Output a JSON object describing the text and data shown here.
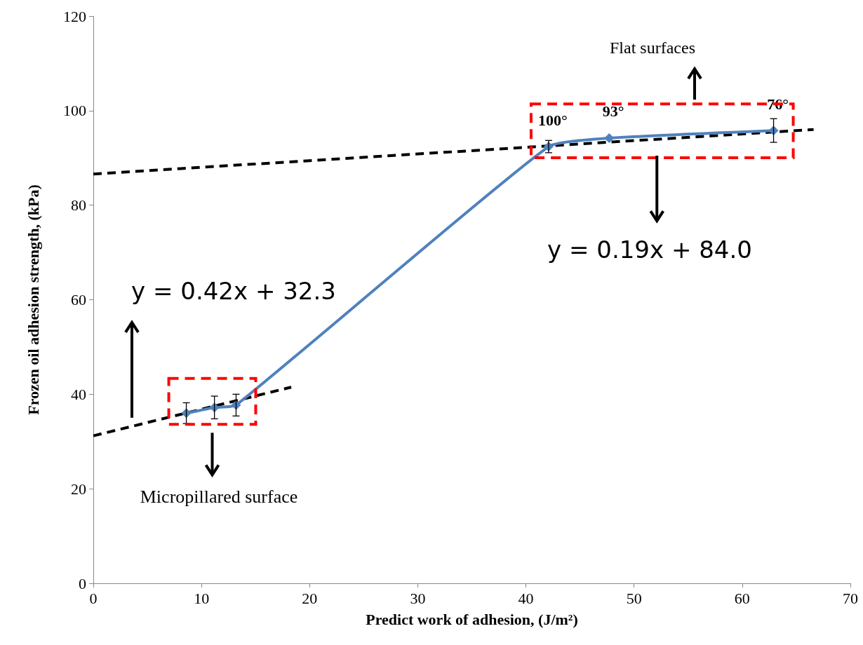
{
  "chart_data": {
    "type": "line",
    "xlabel": "Predict work of adhesion, (J/m²)",
    "ylabel": "Frozen oil adhesion strength, (kPa)",
    "xlim": [
      0,
      70
    ],
    "xticks": [
      0,
      10,
      20,
      30,
      40,
      50,
      60,
      70
    ],
    "ylim": [
      0,
      120
    ],
    "yticks": [
      0,
      20,
      40,
      60,
      80,
      100,
      120
    ],
    "grid": false,
    "series": [
      {
        "color": "#4f81bd",
        "marker": "diamond",
        "line_style": "solid",
        "x": [
          8.6,
          11.2,
          13.2,
          42.1,
          47.7,
          62.9
        ],
        "values": [
          36.0,
          37.2,
          37.7,
          92.4,
          94.2,
          95.8
        ],
        "errors": [
          2.2,
          2.4,
          2.3,
          1.3,
          null,
          2.5
        ]
      },
      {
        "type": "line",
        "color": "#000000",
        "marker": "none",
        "line_style": "dashed",
        "x": [
          0,
          18.3
        ],
        "values": [
          31.2,
          41.5
        ]
      },
      {
        "type": "line",
        "color": "#000000",
        "marker": "none",
        "line_style": "dashed",
        "x": [
          0,
          66.6
        ],
        "values": [
          86.6,
          96.0
        ]
      }
    ],
    "annotations": [
      "Flat surfaces",
      "Micropillared surface",
      "y = 0.42x + 32.3",
      "y = 0.19x + 84.0",
      {
        "text": "100°",
        "x": 42.1,
        "y": 92.4
      },
      {
        "text": "93°",
        "x": 47.7,
        "y": 94.2
      },
      {
        "text": "76°",
        "x": 62.9,
        "y": 95.8
      }
    ]
  }
}
